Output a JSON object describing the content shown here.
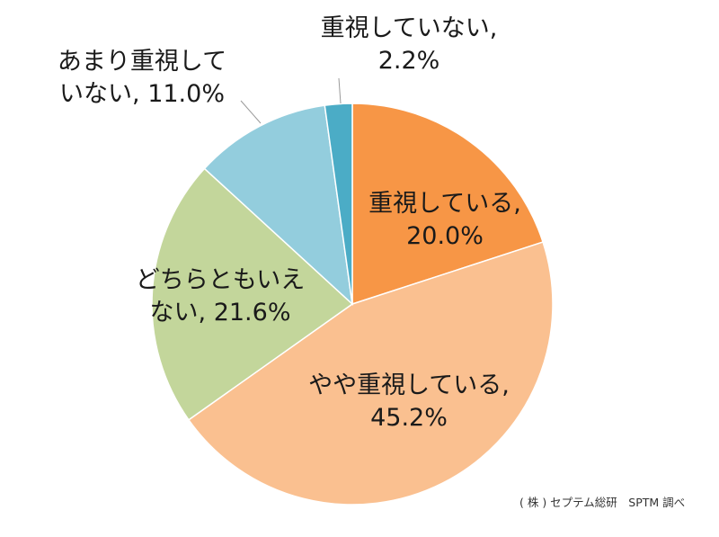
{
  "chart_data": {
    "type": "pie",
    "slices": [
      {
        "label": "重視している",
        "value": 20.0,
        "color": "#F79646"
      },
      {
        "label": "やや重視している",
        "value": 45.2,
        "color": "#FAC090"
      },
      {
        "label": "どちらともいえない",
        "value": 21.6,
        "color": "#C3D69B"
      },
      {
        "label": "あまり重視していない",
        "value": 11.0,
        "color": "#93CDDD"
      },
      {
        "label": "重視していない",
        "value": 2.2,
        "color": "#4BACC6"
      }
    ],
    "data_labels": [
      [
        "重視している,",
        "20.0%"
      ],
      [
        "やや重視している,",
        "45.2%"
      ],
      [
        "どちらともいえ",
        "ない, 21.6%"
      ],
      [
        "あまり重視して",
        "いない, 11.0%"
      ],
      [
        "重視していない,",
        "2.2%"
      ]
    ],
    "start_angle": "12 o'clock",
    "direction": "clockwise"
  },
  "source_note": "( 株 ) セプテム総研　SPTM 調べ"
}
